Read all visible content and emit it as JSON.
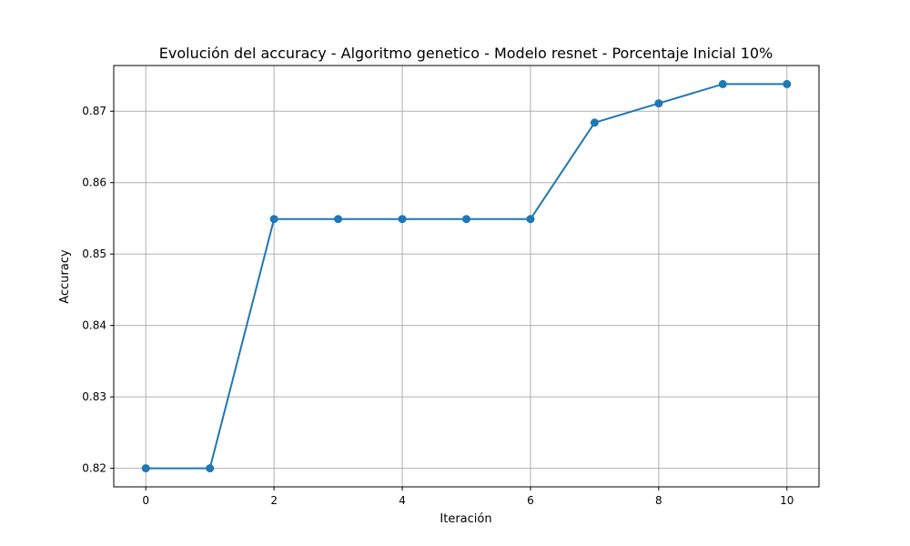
{
  "chart_data": {
    "type": "line",
    "title": "Evolución del accuracy - Algoritmo genetico - Modelo resnet - Porcentaje Inicial 10%",
    "xlabel": "Iteración",
    "ylabel": "Accuracy",
    "x": [
      0,
      1,
      2,
      3,
      4,
      5,
      6,
      7,
      8,
      9,
      10
    ],
    "series": [
      {
        "values": [
          0.82,
          0.82,
          0.8549,
          0.8549,
          0.8549,
          0.8549,
          0.8549,
          0.8684,
          0.8711,
          0.8738,
          0.8738
        ],
        "color": "#1f77b4",
        "marker": "circle"
      }
    ],
    "xlim": [
      -0.5,
      10.5
    ],
    "ylim": [
      0.8174,
      0.8764
    ],
    "xticks": [
      0,
      2,
      4,
      6,
      8,
      10
    ],
    "xtick_labels": [
      "0",
      "2",
      "4",
      "6",
      "8",
      "10"
    ],
    "yticks": [
      0.82,
      0.83,
      0.84,
      0.85,
      0.86,
      0.87
    ],
    "ytick_labels": [
      "0.82",
      "0.83",
      "0.84",
      "0.85",
      "0.86",
      "0.87"
    ],
    "grid": true,
    "grid_color": "#b0b0b0"
  }
}
